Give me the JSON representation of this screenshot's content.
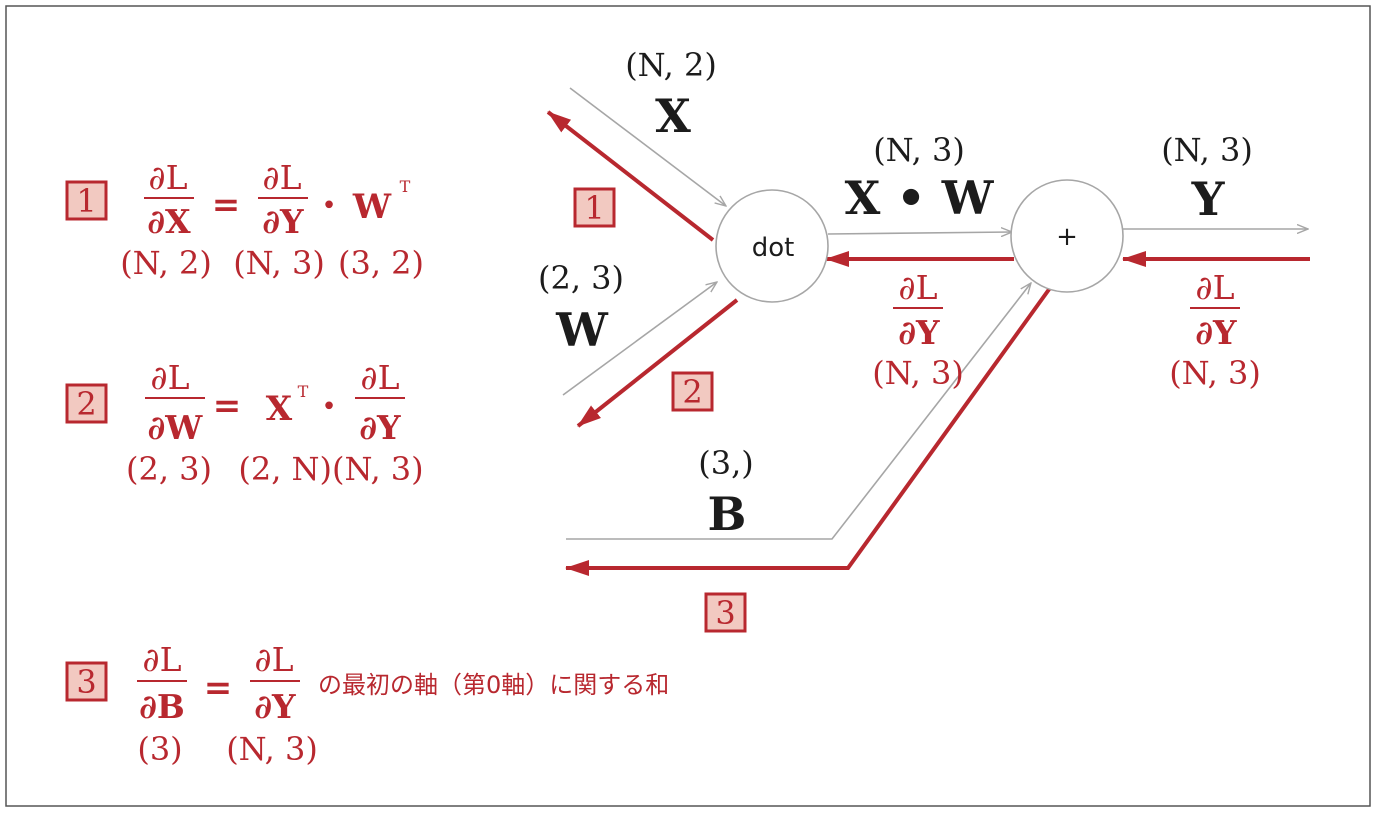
{
  "colors": {
    "accent": "#b8282f",
    "forward": "#a6a6a6",
    "badge_fill": "#f2c9c1",
    "text": "#1c1c1c"
  },
  "badges": {
    "b1": "1",
    "b2": "2",
    "b3": "3"
  },
  "symbols": {
    "partial_L": "∂L",
    "partial_X": "∂X",
    "partial_Y": "∂Y",
    "partial_W": "∂W",
    "partial_B": "∂B",
    "equals": "=",
    "dot": "•",
    "W": "W",
    "X": "X",
    "T": "T"
  },
  "equations": {
    "eq1": {
      "shapes": [
        "(N, 2)",
        "(N, 3)",
        "(3, 2)"
      ]
    },
    "eq2": {
      "shapes": [
        "(2, 3)",
        "(2, N)(N, 3)"
      ]
    },
    "eq3": {
      "shapes": [
        "(3)",
        "(N, 3)"
      ],
      "text": "の最初の軸（第0軸）に関する和"
    }
  },
  "graph": {
    "nodes": {
      "dot": "dot",
      "plus": "+"
    },
    "inputs": {
      "x": {
        "shape": "(N, 2)",
        "label": "X"
      },
      "w": {
        "shape": "(2, 3)",
        "label": "W"
      },
      "b": {
        "shape": "(3,)",
        "label": "B"
      }
    },
    "xw": {
      "shape": "(N, 3)",
      "label": "X • W"
    },
    "y": {
      "shape": "(N, 3)",
      "label": "Y"
    },
    "grad_mid_shape": "(N, 3)",
    "grad_right_shape": "(N, 3)"
  }
}
